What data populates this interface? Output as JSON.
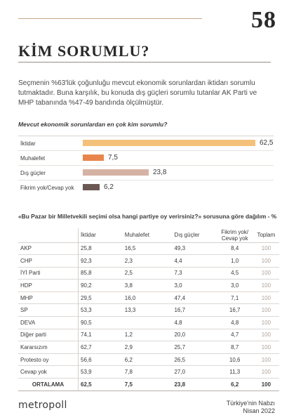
{
  "page_number": "58",
  "title": "KİM SORUMLU?",
  "intro": "Seçmenin %63'lük çoğunluğu mevcut ekonomik sorunlardan iktidarı sorumlu tutmaktadır. Buna karşılık, bu konuda dış güçleri sorumlu tutanlar AK Parti ve MHP tabanında %47-49 bandında ölçülmüştür.",
  "chart_question": "Mevcut ekonomik sorunlardan en çok kim sorumlu?",
  "colors": {
    "iktidar": "#f3c179",
    "muhalefet": "#e9854c",
    "dis_gucler": "#d6b2a4",
    "fikrim_yok": "#6b5853"
  },
  "chart_data": [
    {
      "type": "bar",
      "orientation": "horizontal",
      "title": "Mevcut ekonomik sorunlardan en çok kim sorumlu?",
      "categories": [
        "İktidar",
        "Muhalefet",
        "Dış güçler",
        "Fikrim yok/Cevap yok"
      ],
      "values": [
        62.5,
        7.5,
        23.8,
        6.2
      ],
      "value_labels": [
        "62,5",
        "7,5",
        "23,8",
        "6,2"
      ],
      "colors": [
        "#f3c179",
        "#e9854c",
        "#d6b2a4",
        "#6b5853"
      ],
      "xlim": [
        0,
        62.5
      ]
    },
    {
      "type": "table",
      "title": "«Bu Pazar bir Milletvekili seçimi olsa hangi partiye oy verirsiniz?» sorusuna göre dağılım - %",
      "columns": [
        "",
        "İktidar",
        "Muhalefet",
        "Dış güçler",
        "Fikrim yok/ Cevap yok",
        "Toplam"
      ],
      "rows": [
        [
          "AKP",
          "25,8",
          "16,5",
          "49,3",
          "8,4",
          "100"
        ],
        [
          "CHP",
          "92,3",
          "2,3",
          "4,4",
          "1,0",
          "100"
        ],
        [
          "İYİ Parti",
          "85,8",
          "2,5",
          "7,3",
          "4,5",
          "100"
        ],
        [
          "HDP",
          "90,2",
          "3,8",
          "3,0",
          "3,0",
          "100"
        ],
        [
          "MHP",
          "29,5",
          "16,0",
          "47,4",
          "7,1",
          "100"
        ],
        [
          "SP",
          "53,3",
          "13,3",
          "16,7",
          "16,7",
          "100"
        ],
        [
          "DEVA",
          "90,5",
          "",
          "4,8",
          "4,8",
          "100"
        ],
        [
          "Diğer parti",
          "74,1",
          "1,2",
          "20,0",
          "4,7",
          "100"
        ],
        [
          "Kararsızım",
          "62,7",
          "2,9",
          "25,7",
          "8,7",
          "100"
        ],
        [
          "Protesto oy",
          "56,6",
          "6,2",
          "26,5",
          "10,6",
          "100"
        ],
        [
          "Cevap yok",
          "53,9",
          "7,8",
          "27,0",
          "11,3",
          "100"
        ]
      ],
      "average_row": [
        "ORTALAMA",
        "62,5",
        "7,5",
        "23,8",
        "6,2",
        "100"
      ]
    }
  ],
  "footer": {
    "logo": "metropoll",
    "source_line1": "Türkiye'nin Nabzı",
    "source_line2": "Nisan 2022"
  }
}
